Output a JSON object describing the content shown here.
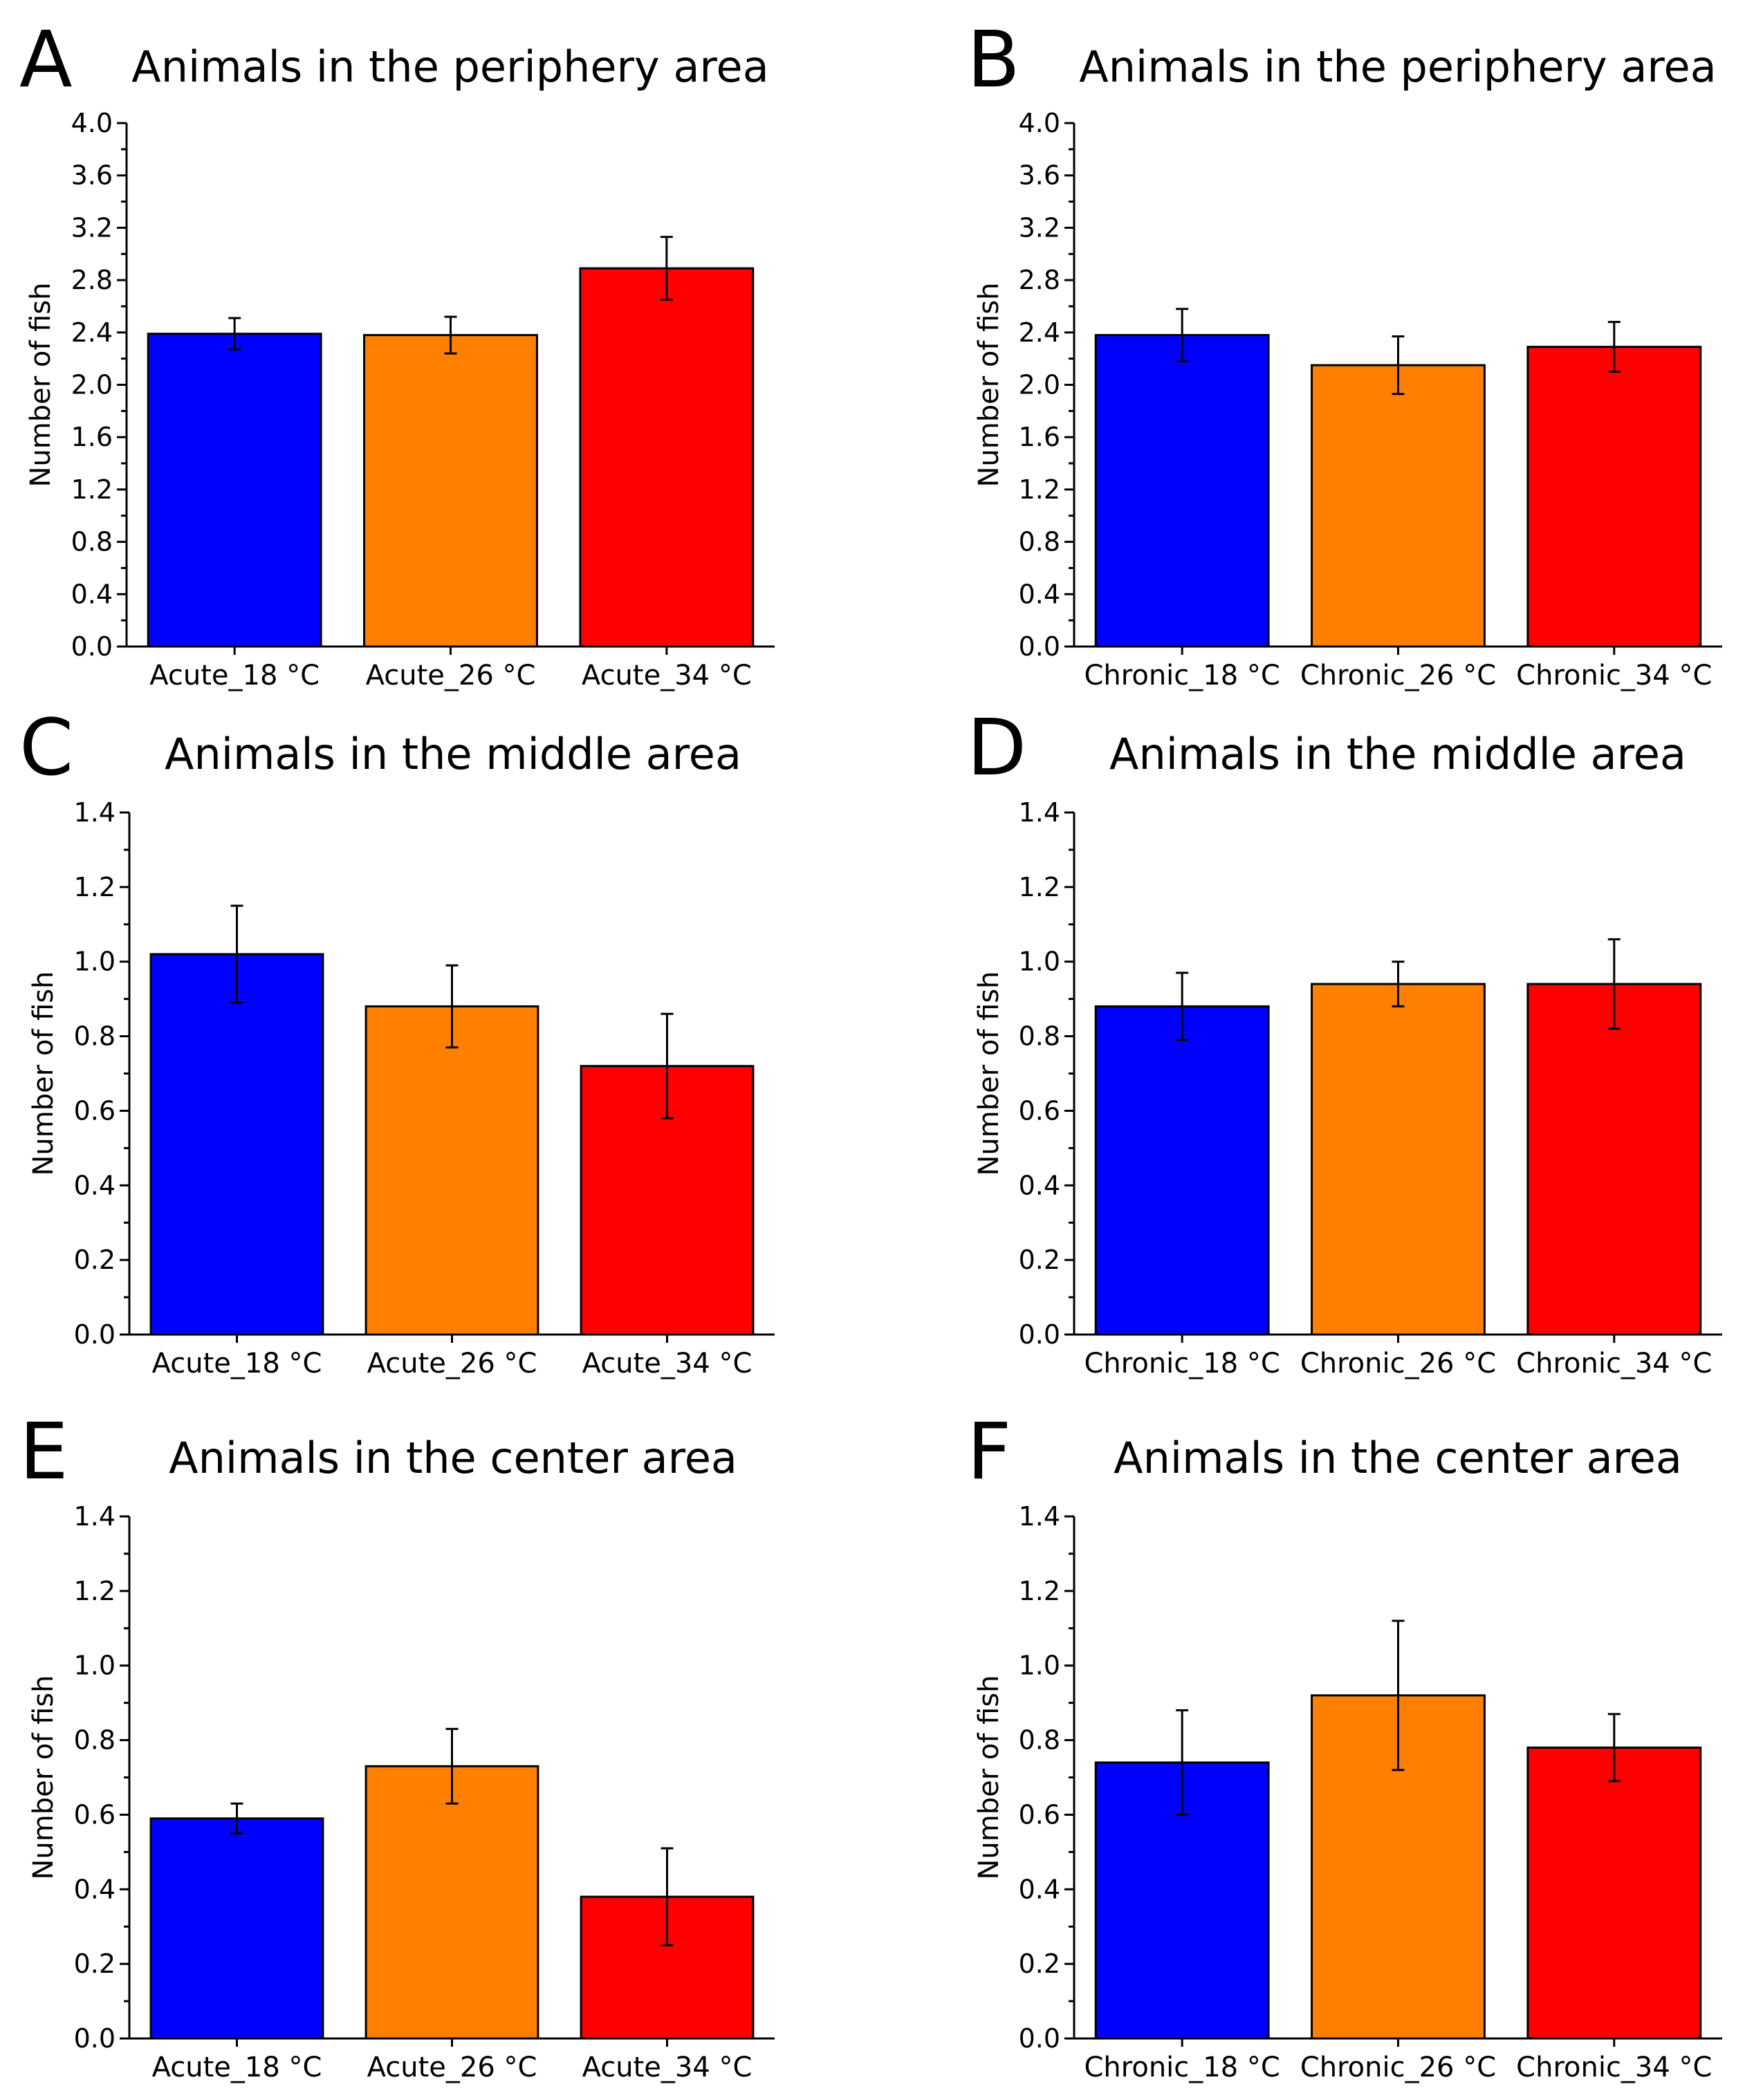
{
  "chart_data": [
    {
      "panel": "A",
      "type": "bar",
      "title": "Animals in the periphery area",
      "ylabel": "Number of fish",
      "xlabel": "",
      "ylim": [
        0,
        4.0
      ],
      "yticks": [
        "0.0",
        "0.4",
        "0.8",
        "1.2",
        "1.6",
        "2.0",
        "2.4",
        "2.8",
        "3.2",
        "3.6",
        "4.0"
      ],
      "categories": [
        "Acute_18 °C",
        "Acute_26 °C",
        "Acute_34 °C"
      ],
      "values": [
        2.39,
        2.38,
        2.89
      ],
      "errors": [
        0.12,
        0.14,
        0.24
      ],
      "colors": [
        "#0000ff",
        "#ff8000",
        "#ff0000"
      ]
    },
    {
      "panel": "B",
      "type": "bar",
      "title": "Animals in the periphery area",
      "ylabel": "Number of fish",
      "xlabel": "",
      "ylim": [
        0,
        4.0
      ],
      "yticks": [
        "0.0",
        "0.4",
        "0.8",
        "1.2",
        "1.6",
        "2.0",
        "2.4",
        "2.8",
        "3.2",
        "3.6",
        "4.0"
      ],
      "categories": [
        "Chronic_18 °C",
        "Chronic_26 °C",
        "Chronic_34 °C"
      ],
      "values": [
        2.38,
        2.15,
        2.29
      ],
      "errors": [
        0.2,
        0.22,
        0.19
      ],
      "colors": [
        "#0000ff",
        "#ff8000",
        "#ff0000"
      ]
    },
    {
      "panel": "C",
      "type": "bar",
      "title": "Animals in the middle area",
      "ylabel": "Number of fish",
      "xlabel": "",
      "ylim": [
        0,
        1.4
      ],
      "yticks": [
        "0.0",
        "0.2",
        "0.4",
        "0.6",
        "0.8",
        "1.0",
        "1.2",
        "1.4"
      ],
      "categories": [
        "Acute_18 °C",
        "Acute_26 °C",
        "Acute_34 °C"
      ],
      "values": [
        1.02,
        0.88,
        0.72
      ],
      "errors": [
        0.13,
        0.11,
        0.14
      ],
      "colors": [
        "#0000ff",
        "#ff8000",
        "#ff0000"
      ]
    },
    {
      "panel": "D",
      "type": "bar",
      "title": "Animals in the middle area",
      "ylabel": "Number of fish",
      "xlabel": "",
      "ylim": [
        0,
        1.4
      ],
      "yticks": [
        "0.0",
        "0.2",
        "0.4",
        "0.6",
        "0.8",
        "1.0",
        "1.2",
        "1.4"
      ],
      "categories": [
        "Chronic_18 °C",
        "Chronic_26 °C",
        "Chronic_34 °C"
      ],
      "values": [
        0.88,
        0.94,
        0.94
      ],
      "errors": [
        0.09,
        0.06,
        0.12
      ],
      "colors": [
        "#0000ff",
        "#ff8000",
        "#ff0000"
      ]
    },
    {
      "panel": "E",
      "type": "bar",
      "title": "Animals in the center area",
      "ylabel": "Number of fish",
      "xlabel": "",
      "ylim": [
        0,
        1.4
      ],
      "yticks": [
        "0.0",
        "0.2",
        "0.4",
        "0.6",
        "0.8",
        "1.0",
        "1.2",
        "1.4"
      ],
      "categories": [
        "Acute_18 °C",
        "Acute_26 °C",
        "Acute_34 °C"
      ],
      "values": [
        0.59,
        0.73,
        0.38
      ],
      "errors": [
        0.04,
        0.1,
        0.13
      ],
      "colors": [
        "#0000ff",
        "#ff8000",
        "#ff0000"
      ]
    },
    {
      "panel": "F",
      "type": "bar",
      "title": "Animals in the center area",
      "ylabel": "Number of fish",
      "xlabel": "",
      "ylim": [
        0,
        1.4
      ],
      "yticks": [
        "0.0",
        "0.2",
        "0.4",
        "0.6",
        "0.8",
        "1.0",
        "1.2",
        "1.4"
      ],
      "categories": [
        "Chronic_18 °C",
        "Chronic_26 °C",
        "Chronic_34 °C"
      ],
      "values": [
        0.74,
        0.92,
        0.78
      ],
      "errors": [
        0.14,
        0.2,
        0.09
      ],
      "colors": [
        "#0000ff",
        "#ff8000",
        "#ff0000"
      ]
    }
  ]
}
